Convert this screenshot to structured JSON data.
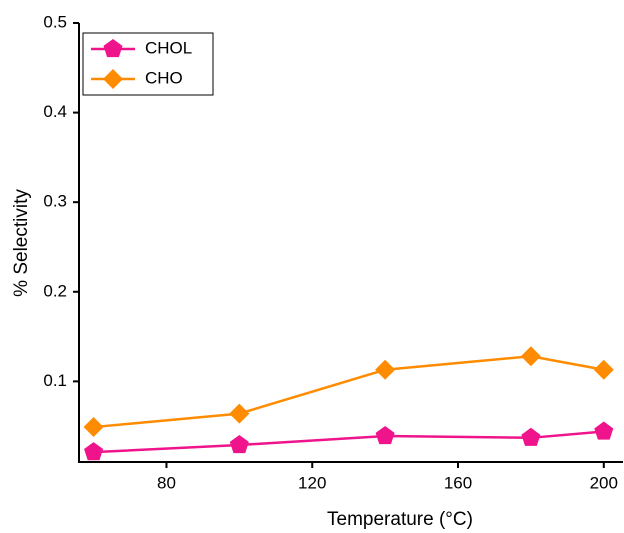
{
  "chart_data": {
    "type": "line",
    "x_label": "Temperature (°C)",
    "y_label": "% Selectivity",
    "x": [
      60,
      100,
      140,
      180,
      200
    ],
    "series": [
      {
        "name": "CHOL",
        "color": "#f0148c",
        "marker": "pentagon",
        "values": [
          0.021,
          0.029,
          0.039,
          0.037,
          0.044
        ]
      },
      {
        "name": "CHO",
        "color": "#ff8c00",
        "marker": "diamond",
        "values": [
          0.049,
          0.064,
          0.113,
          0.128,
          0.113
        ]
      }
    ],
    "xlim": [
      56,
      205
    ],
    "xticks": [
      80,
      120,
      160,
      200
    ],
    "ylim": [
      0.01,
      0.5
    ],
    "yticks": [
      0.1,
      0.2,
      0.3,
      0.4,
      0.5
    ],
    "legend": "upper left"
  }
}
